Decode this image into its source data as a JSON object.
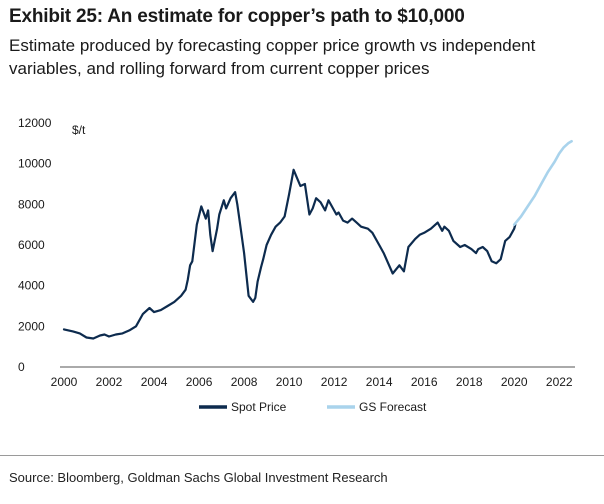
{
  "header": {
    "title": "Exhibit 25: An estimate for copper’s path to $10,000",
    "subtitle": "Estimate produced by forecasting copper price growth vs independent variables, and rolling forward from current copper prices"
  },
  "footer": {
    "source": "Source: Bloomberg, Goldman Sachs Global Investment Research"
  },
  "colors": {
    "spot": "#0d2b4e",
    "forecast": "#a9d3ec",
    "axis": "#555555"
  },
  "chart_data": {
    "type": "line",
    "title": "Exhibit 25: An estimate for copper’s path to $10,000",
    "xlabel": "",
    "ylabel": "$/t",
    "xlim": [
      2000,
      2022.7
    ],
    "ylim": [
      0,
      12000
    ],
    "yticks": [
      "0",
      "2000",
      "4000",
      "6000",
      "8000",
      "10000",
      "12000"
    ],
    "xticks": [
      "2000",
      "2002",
      "2004",
      "2006",
      "2008",
      "2010",
      "2012",
      "2014",
      "2016",
      "2018",
      "2020",
      "2022"
    ],
    "grid": false,
    "legend": "bottom-center",
    "series": [
      {
        "name": "Spot Price",
        "x": [
          2000.0,
          2000.4,
          2000.7,
          2001.0,
          2001.3,
          2001.6,
          2001.8,
          2002.0,
          2002.3,
          2002.6,
          2002.9,
          2003.2,
          2003.5,
          2003.8,
          2004.0,
          2004.3,
          2004.6,
          2004.9,
          2005.2,
          2005.4,
          2005.5,
          2005.6,
          2005.7,
          2005.9,
          2006.1,
          2006.3,
          2006.4,
          2006.5,
          2006.6,
          2006.8,
          2006.9,
          2007.1,
          2007.2,
          2007.4,
          2007.6,
          2007.7,
          2007.8,
          2008.0,
          2008.2,
          2008.4,
          2008.5,
          2008.6,
          2008.75,
          2008.85,
          2009.0,
          2009.2,
          2009.4,
          2009.6,
          2009.8,
          2010.0,
          2010.2,
          2010.35,
          2010.5,
          2010.7,
          2010.9,
          2011.05,
          2011.2,
          2011.4,
          2011.6,
          2011.75,
          2011.9,
          2012.1,
          2012.2,
          2012.4,
          2012.6,
          2012.8,
          2013.0,
          2013.2,
          2013.5,
          2013.7,
          2013.9,
          2014.2,
          2014.4,
          2014.6,
          2014.9,
          2015.1,
          2015.3,
          2015.6,
          2015.8,
          2016.0,
          2016.3,
          2016.6,
          2016.8,
          2016.9,
          2017.1,
          2017.3,
          2017.6,
          2017.8,
          2018.1,
          2018.3,
          2018.4,
          2018.6,
          2018.8,
          2019.0,
          2019.2,
          2019.4,
          2019.6,
          2019.8,
          2020.0,
          2020.05
        ],
        "values": [
          1850,
          1750,
          1650,
          1450,
          1400,
          1550,
          1600,
          1500,
          1600,
          1650,
          1800,
          2000,
          2600,
          2900,
          2700,
          2800,
          3000,
          3200,
          3500,
          3800,
          4300,
          5000,
          5200,
          7000,
          7900,
          7300,
          7700,
          6500,
          5700,
          6800,
          7500,
          8200,
          7800,
          8300,
          8600,
          8000,
          7200,
          5600,
          3500,
          3200,
          3400,
          4200,
          4900,
          5300,
          6000,
          6500,
          6900,
          7100,
          7400,
          8500,
          9700,
          9300,
          8900,
          9000,
          7500,
          7800,
          8300,
          8100,
          7700,
          8200,
          7900,
          7500,
          7600,
          7200,
          7100,
          7300,
          7100,
          6900,
          6800,
          6600,
          6200,
          5600,
          5100,
          4600,
          5000,
          4700,
          5900,
          6300,
          6500,
          6600,
          6800,
          7100,
          6700,
          6900,
          6700,
          6200,
          5900,
          6000,
          5800,
          5600,
          5800,
          5900,
          5700,
          5200,
          5100,
          5300,
          6200,
          6400,
          6800,
          7000
        ]
      },
      {
        "name": "GS Forecast",
        "x": [
          2020.0,
          2020.3,
          2020.6,
          2020.9,
          2021.2,
          2021.5,
          2021.8,
          2022.0,
          2022.2,
          2022.4,
          2022.55
        ],
        "values": [
          7000,
          7400,
          7900,
          8400,
          9000,
          9600,
          10100,
          10500,
          10800,
          11000,
          11100
        ]
      }
    ]
  }
}
